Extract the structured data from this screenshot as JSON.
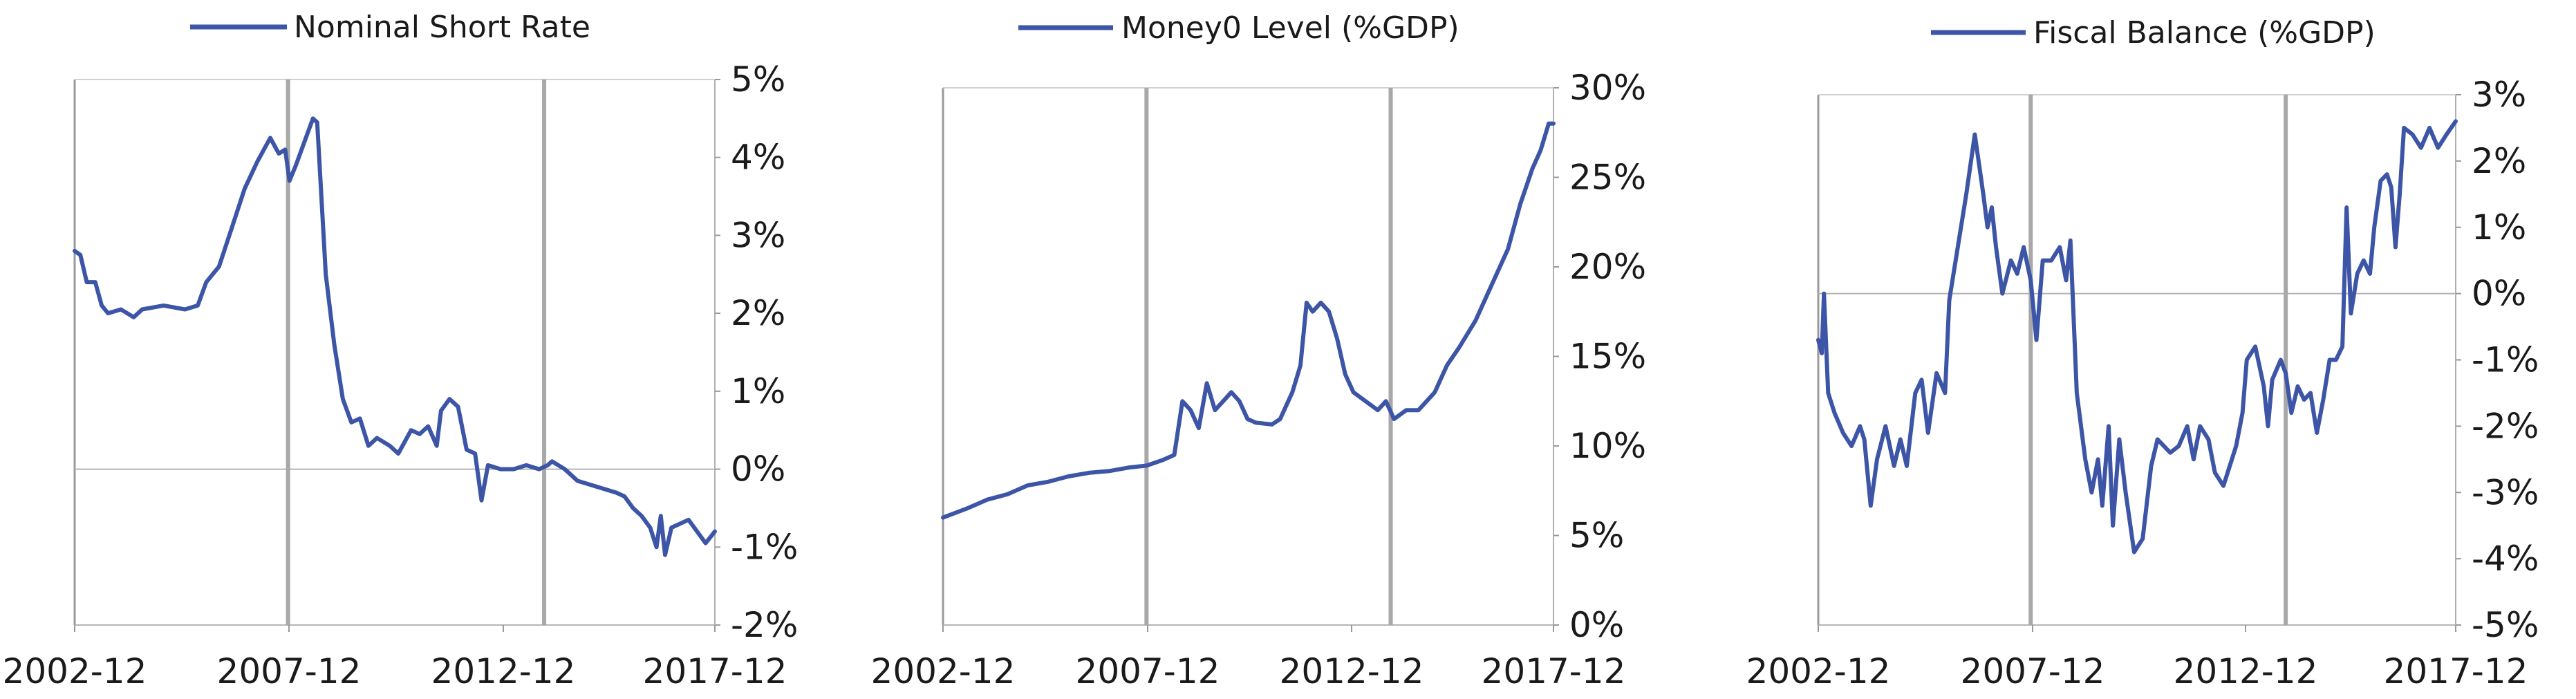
{
  "chart_data": [
    {
      "type": "line",
      "title": "",
      "legend": "top-center",
      "grid": false,
      "series": [
        {
          "name": "Nominal Short Rate",
          "color": "#3d55a6"
        }
      ],
      "x_ticks": [
        "2002-12",
        "2007-12",
        "2012-12",
        "2017-12"
      ],
      "x_range": [
        2002.917,
        2017.917
      ],
      "vlines": [
        2007.917,
        2013.917
      ],
      "ylim": [
        -2,
        5
      ],
      "y_ticks": [
        -2,
        -1,
        0,
        1,
        2,
        3,
        4,
        5
      ],
      "y_tick_labels": [
        "-2%",
        "-1%",
        "0%",
        "1%",
        "2%",
        "3%",
        "4%",
        "5%"
      ],
      "points": [
        [
          2002.917,
          2.8
        ],
        [
          2003.05,
          2.75
        ],
        [
          2003.2,
          2.4
        ],
        [
          2003.4,
          2.4
        ],
        [
          2003.55,
          2.1
        ],
        [
          2003.7,
          2.0
        ],
        [
          2004.0,
          2.05
        ],
        [
          2004.3,
          1.95
        ],
        [
          2004.5,
          2.05
        ],
        [
          2005.0,
          2.1
        ],
        [
          2005.5,
          2.05
        ],
        [
          2005.8,
          2.1
        ],
        [
          2006.0,
          2.4
        ],
        [
          2006.3,
          2.6
        ],
        [
          2006.6,
          3.1
        ],
        [
          2006.9,
          3.6
        ],
        [
          2007.2,
          3.95
        ],
        [
          2007.5,
          4.25
        ],
        [
          2007.7,
          4.05
        ],
        [
          2007.85,
          4.1
        ],
        [
          2007.95,
          3.7
        ],
        [
          2008.1,
          3.9
        ],
        [
          2008.3,
          4.2
        ],
        [
          2008.5,
          4.5
        ],
        [
          2008.6,
          4.45
        ],
        [
          2008.8,
          2.5
        ],
        [
          2009.0,
          1.6
        ],
        [
          2009.2,
          0.9
        ],
        [
          2009.4,
          0.6
        ],
        [
          2009.6,
          0.65
        ],
        [
          2009.8,
          0.3
        ],
        [
          2010.0,
          0.4
        ],
        [
          2010.3,
          0.3
        ],
        [
          2010.5,
          0.2
        ],
        [
          2010.8,
          0.5
        ],
        [
          2011.0,
          0.45
        ],
        [
          2011.2,
          0.55
        ],
        [
          2011.4,
          0.3
        ],
        [
          2011.5,
          0.75
        ],
        [
          2011.7,
          0.9
        ],
        [
          2011.9,
          0.8
        ],
        [
          2012.1,
          0.25
        ],
        [
          2012.3,
          0.2
        ],
        [
          2012.45,
          -0.4
        ],
        [
          2012.6,
          0.05
        ],
        [
          2012.9,
          0.0
        ],
        [
          2013.2,
          0.0
        ],
        [
          2013.5,
          0.05
        ],
        [
          2013.8,
          0.0
        ],
        [
          2014.0,
          0.05
        ],
        [
          2014.1,
          0.1
        ],
        [
          2014.4,
          0.0
        ],
        [
          2014.7,
          -0.15
        ],
        [
          2015.0,
          -0.2
        ],
        [
          2015.3,
          -0.25
        ],
        [
          2015.6,
          -0.3
        ],
        [
          2015.8,
          -0.35
        ],
        [
          2016.0,
          -0.5
        ],
        [
          2016.2,
          -0.6
        ],
        [
          2016.4,
          -0.75
        ],
        [
          2016.55,
          -1.0
        ],
        [
          2016.65,
          -0.6
        ],
        [
          2016.75,
          -1.1
        ],
        [
          2016.9,
          -0.75
        ],
        [
          2017.1,
          -0.7
        ],
        [
          2017.3,
          -0.65
        ],
        [
          2017.5,
          -0.8
        ],
        [
          2017.7,
          -0.95
        ],
        [
          2017.917,
          -0.8
        ]
      ]
    },
    {
      "type": "line",
      "title": "",
      "legend": "top-center",
      "grid": false,
      "series": [
        {
          "name": "Money0 Level (%GDP)",
          "color": "#3d55a6"
        }
      ],
      "x_ticks": [
        "2002-12",
        "2007-12",
        "2012-12",
        "2017-12"
      ],
      "x_range": [
        2002.917,
        2017.917
      ],
      "vlines": [
        2007.917,
        2013.917
      ],
      "ylim": [
        0,
        30
      ],
      "y_ticks": [
        0,
        5,
        10,
        15,
        20,
        25,
        30
      ],
      "y_tick_labels": [
        "0%",
        "5%",
        "10%",
        "15%",
        "20%",
        "25%",
        "30%"
      ],
      "points": [
        [
          2002.917,
          6.0
        ],
        [
          2003.5,
          6.5
        ],
        [
          2004.0,
          7.0
        ],
        [
          2004.5,
          7.3
        ],
        [
          2005.0,
          7.8
        ],
        [
          2005.5,
          8.0
        ],
        [
          2006.0,
          8.3
        ],
        [
          2006.5,
          8.5
        ],
        [
          2007.0,
          8.6
        ],
        [
          2007.5,
          8.8
        ],
        [
          2007.917,
          8.9
        ],
        [
          2008.3,
          9.2
        ],
        [
          2008.6,
          9.5
        ],
        [
          2008.8,
          12.5
        ],
        [
          2009.0,
          12.0
        ],
        [
          2009.2,
          11.0
        ],
        [
          2009.4,
          13.5
        ],
        [
          2009.6,
          12.0
        ],
        [
          2009.8,
          12.5
        ],
        [
          2010.0,
          13.0
        ],
        [
          2010.2,
          12.5
        ],
        [
          2010.4,
          11.5
        ],
        [
          2010.6,
          11.3
        ],
        [
          2011.0,
          11.2
        ],
        [
          2011.2,
          11.5
        ],
        [
          2011.5,
          13.0
        ],
        [
          2011.7,
          14.5
        ],
        [
          2011.85,
          18.0
        ],
        [
          2012.0,
          17.5
        ],
        [
          2012.2,
          18.0
        ],
        [
          2012.4,
          17.5
        ],
        [
          2012.6,
          16.0
        ],
        [
          2012.8,
          14.0
        ],
        [
          2013.0,
          13.0
        ],
        [
          2013.3,
          12.5
        ],
        [
          2013.6,
          12.0
        ],
        [
          2013.8,
          12.5
        ],
        [
          2014.0,
          11.5
        ],
        [
          2014.3,
          12.0
        ],
        [
          2014.6,
          12.0
        ],
        [
          2014.8,
          12.5
        ],
        [
          2015.0,
          13.0
        ],
        [
          2015.3,
          14.5
        ],
        [
          2015.6,
          15.5
        ],
        [
          2016.0,
          17.0
        ],
        [
          2016.4,
          19.0
        ],
        [
          2016.8,
          21.0
        ],
        [
          2017.1,
          23.5
        ],
        [
          2017.4,
          25.5
        ],
        [
          2017.6,
          26.5
        ],
        [
          2017.8,
          28.0
        ],
        [
          2017.917,
          28.0
        ]
      ]
    },
    {
      "type": "line",
      "title": "",
      "legend": "top-center",
      "grid": false,
      "series": [
        {
          "name": "Fiscal Balance (%GDP)",
          "color": "#3d55a6"
        }
      ],
      "x_ticks": [
        "2002-12",
        "2007-12",
        "2012-12",
        "2017-12"
      ],
      "x_range": [
        2002.917,
        2017.917
      ],
      "vlines": [
        2007.917,
        2013.917
      ],
      "ylim": [
        -5,
        3
      ],
      "y_ticks": [
        -5,
        -4,
        -3,
        -2,
        -1,
        0,
        1,
        2,
        3
      ],
      "y_tick_labels": [
        "-5%",
        "-4%",
        "-3%",
        "-2%",
        "-1%",
        "0%",
        "1%",
        "2%",
        "3%"
      ],
      "points": [
        [
          2002.917,
          -0.7
        ],
        [
          2003.0,
          -0.9
        ],
        [
          2003.05,
          0.0
        ],
        [
          2003.15,
          -1.5
        ],
        [
          2003.3,
          -1.8
        ],
        [
          2003.5,
          -2.1
        ],
        [
          2003.7,
          -2.3
        ],
        [
          2003.9,
          -2.0
        ],
        [
          2004.0,
          -2.2
        ],
        [
          2004.15,
          -3.2
        ],
        [
          2004.3,
          -2.5
        ],
        [
          2004.5,
          -2.0
        ],
        [
          2004.7,
          -2.6
        ],
        [
          2004.85,
          -2.2
        ],
        [
          2005.0,
          -2.6
        ],
        [
          2005.2,
          -1.5
        ],
        [
          2005.35,
          -1.3
        ],
        [
          2005.5,
          -2.1
        ],
        [
          2005.7,
          -1.2
        ],
        [
          2005.9,
          -1.5
        ],
        [
          2006.0,
          -0.1
        ],
        [
          2006.2,
          0.7
        ],
        [
          2006.4,
          1.5
        ],
        [
          2006.6,
          2.4
        ],
        [
          2006.8,
          1.5
        ],
        [
          2006.9,
          1.0
        ],
        [
          2007.0,
          1.3
        ],
        [
          2007.1,
          0.7
        ],
        [
          2007.25,
          0.0
        ],
        [
          2007.45,
          0.5
        ],
        [
          2007.6,
          0.3
        ],
        [
          2007.75,
          0.7
        ],
        [
          2007.917,
          0.2
        ],
        [
          2008.05,
          -0.7
        ],
        [
          2008.2,
          0.5
        ],
        [
          2008.4,
          0.5
        ],
        [
          2008.6,
          0.7
        ],
        [
          2008.75,
          0.2
        ],
        [
          2008.85,
          0.8
        ],
        [
          2009.0,
          -1.5
        ],
        [
          2009.2,
          -2.5
        ],
        [
          2009.35,
          -3.0
        ],
        [
          2009.5,
          -2.5
        ],
        [
          2009.6,
          -3.2
        ],
        [
          2009.75,
          -2.0
        ],
        [
          2009.85,
          -3.5
        ],
        [
          2010.0,
          -2.2
        ],
        [
          2010.15,
          -3.0
        ],
        [
          2010.35,
          -3.9
        ],
        [
          2010.55,
          -3.7
        ],
        [
          2010.75,
          -2.6
        ],
        [
          2010.9,
          -2.2
        ],
        [
          2011.2,
          -2.4
        ],
        [
          2011.4,
          -2.3
        ],
        [
          2011.6,
          -2.0
        ],
        [
          2011.75,
          -2.5
        ],
        [
          2011.9,
          -2.0
        ],
        [
          2012.1,
          -2.2
        ],
        [
          2012.25,
          -2.7
        ],
        [
          2012.45,
          -2.9
        ],
        [
          2012.6,
          -2.6
        ],
        [
          2012.75,
          -2.3
        ],
        [
          2012.9,
          -1.8
        ],
        [
          2013.0,
          -1.0
        ],
        [
          2013.2,
          -0.8
        ],
        [
          2013.4,
          -1.4
        ],
        [
          2013.5,
          -2.0
        ],
        [
          2013.6,
          -1.3
        ],
        [
          2013.8,
          -1.0
        ],
        [
          2013.917,
          -1.2
        ],
        [
          2014.05,
          -1.8
        ],
        [
          2014.2,
          -1.4
        ],
        [
          2014.35,
          -1.6
        ],
        [
          2014.5,
          -1.5
        ],
        [
          2014.65,
          -2.1
        ],
        [
          2014.8,
          -1.6
        ],
        [
          2014.95,
          -1.0
        ],
        [
          2015.1,
          -1.0
        ],
        [
          2015.25,
          -0.8
        ],
        [
          2015.35,
          1.3
        ],
        [
          2015.45,
          -0.3
        ],
        [
          2015.6,
          0.3
        ],
        [
          2015.75,
          0.5
        ],
        [
          2015.9,
          0.3
        ],
        [
          2016.0,
          1.0
        ],
        [
          2016.15,
          1.7
        ],
        [
          2016.3,
          1.8
        ],
        [
          2016.4,
          1.6
        ],
        [
          2016.5,
          0.7
        ],
        [
          2016.6,
          1.5
        ],
        [
          2016.7,
          2.5
        ],
        [
          2016.9,
          2.4
        ],
        [
          2017.1,
          2.2
        ],
        [
          2017.3,
          2.5
        ],
        [
          2017.5,
          2.2
        ],
        [
          2017.7,
          2.4
        ],
        [
          2017.917,
          2.6
        ]
      ]
    }
  ]
}
